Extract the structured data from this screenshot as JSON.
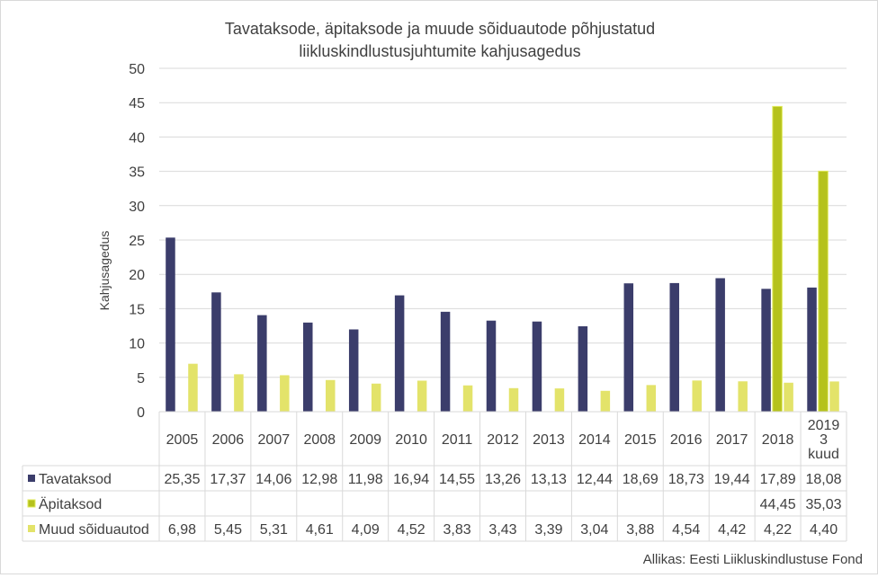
{
  "chart_data": {
    "type": "bar",
    "title_line1": "Tavataksode, äpitaksode ja muude  sõiduautode põhjustatud",
    "title_line2": "liikluskindlustusjuhtumite  kahjusagedus",
    "ylabel": "Kahjusagedus",
    "xlabel": "",
    "ylim": [
      0,
      50
    ],
    "yticks": [
      "0",
      "5",
      "10",
      "15",
      "20",
      "25",
      "30",
      "35",
      "40",
      "45",
      "50"
    ],
    "grid": true,
    "legend": "data-table",
    "categories": [
      "2005",
      "2006",
      "2007",
      "2008",
      "2009",
      "2010",
      "2011",
      "2012",
      "2013",
      "2014",
      "2015",
      "2016",
      "2017",
      "2018",
      "2019\n3\nkuud"
    ],
    "series": [
      {
        "name": "Tavataksod",
        "color": "#3b3d6b",
        "values": [
          25.35,
          17.37,
          14.06,
          12.98,
          11.98,
          16.94,
          14.55,
          13.26,
          13.13,
          12.44,
          18.69,
          18.73,
          19.44,
          17.89,
          18.08
        ],
        "labels": [
          "25,35",
          "17,37",
          "14,06",
          "12,98",
          "11,98",
          "16,94",
          "14,55",
          "13,26",
          "13,13",
          "12,44",
          "18,69",
          "18,73",
          "19,44",
          "17,89",
          "18,08"
        ]
      },
      {
        "name": "Äpitaksod",
        "color": "#b5c21c",
        "values": [
          null,
          null,
          null,
          null,
          null,
          null,
          null,
          null,
          null,
          null,
          null,
          null,
          null,
          44.45,
          35.03
        ],
        "labels": [
          "",
          "",
          "",
          "",
          "",
          "",
          "",
          "",
          "",
          "",
          "",
          "",
          "",
          "44,45",
          "35,03"
        ]
      },
      {
        "name": "Muud sõiduautod",
        "color": "#e3e36a",
        "values": [
          6.98,
          5.45,
          5.31,
          4.61,
          4.09,
          4.52,
          3.83,
          3.43,
          3.39,
          3.04,
          3.88,
          4.54,
          4.42,
          4.22,
          4.4
        ],
        "labels": [
          "6,98",
          "5,45",
          "5,31",
          "4,61",
          "4,09",
          "4,52",
          "3,83",
          "3,43",
          "3,39",
          "3,04",
          "3,88",
          "4,54",
          "4,42",
          "4,22",
          "4,40"
        ]
      }
    ],
    "source": "Allikas:  Eesti  Liikluskindlustuse  Fond"
  }
}
